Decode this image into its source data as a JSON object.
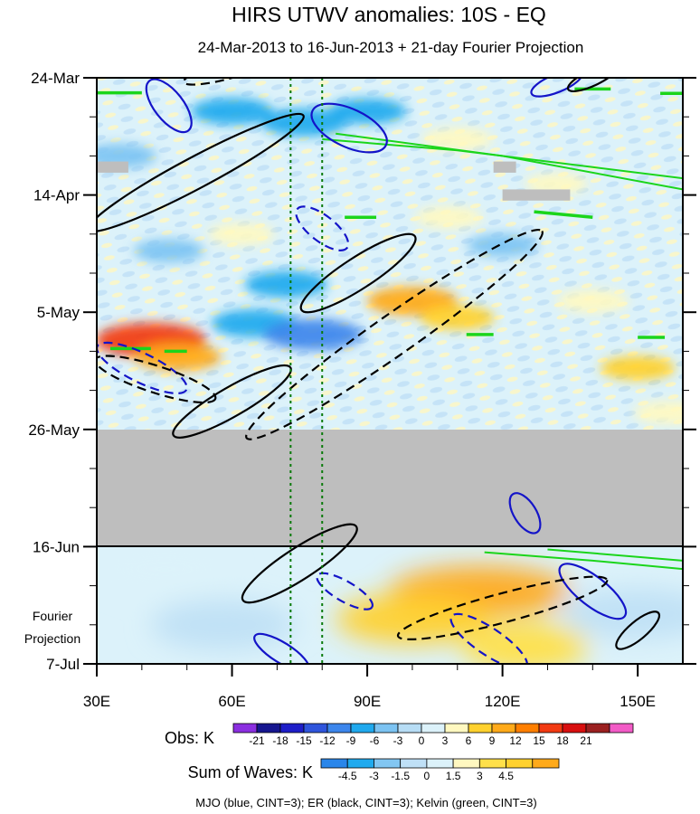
{
  "chart_data": {
    "type": "heatmap",
    "title": "HIRS UTWV anomalies: 10S - EQ",
    "subtitle": "24-Mar-2013 to 16-Jun-2013 + 21-day Fourier Projection",
    "xlabel": "",
    "ylabel": "",
    "x_range": [
      30,
      160
    ],
    "x_ticks": [
      30,
      60,
      90,
      120,
      150
    ],
    "x_tick_labels": [
      "30E",
      "60E",
      "90E",
      "120E",
      "150E"
    ],
    "y_ticks": [
      "24-Mar",
      "14-Apr",
      "5-May",
      "26-May",
      "16-Jun",
      "7-Jul"
    ],
    "y_tick_days": [
      0,
      21,
      42,
      63,
      84,
      105
    ],
    "observation_end": "16-Jun",
    "missing_data_period": [
      "26-May",
      "16-Jun"
    ],
    "projection_label_line1": "Fourier",
    "projection_label_line2": "Projection",
    "reference_lines_lon": [
      73,
      80
    ],
    "obs_colorbar": {
      "label": "Obs: K",
      "ticks": [
        "-21",
        "-18",
        "-15",
        "-12",
        "-9",
        "-6",
        "-3",
        "0",
        "3",
        "6",
        "9",
        "12",
        "15",
        "18",
        "21"
      ],
      "colors": [
        "#8b2fe0",
        "#16168f",
        "#1e1ec8",
        "#2f55dc",
        "#3c86ec",
        "#20a9ee",
        "#7cc3f2",
        "#b7ddf5",
        "#dcf2fa",
        "#fff8c0",
        "#ffd12e",
        "#ffaa1a",
        "#ff7f00",
        "#f23a12",
        "#d80f0f",
        "#9b2020",
        "#f25bc6"
      ]
    },
    "waves_colorbar": {
      "label": "Sum of Waves: K",
      "ticks": [
        "-4.5",
        "-3",
        "-1.5",
        "0",
        "1.5",
        "3",
        "4.5"
      ],
      "colors": [
        "#2a86ea",
        "#20aaee",
        "#82c6f2",
        "#bfe0f6",
        "#dcf2fa",
        "#fff8c0",
        "#ffe04a",
        "#ffd12e",
        "#ffaa1a"
      ]
    },
    "wave_legend": "MJO (blue, CINT=3); ER (black, CINT=3); Kelvin (green, CINT=3)",
    "wave_colors": {
      "mjo": "#1414c8",
      "er": "#000000",
      "kelvin": "#1bd51b"
    },
    "anomaly_features": [
      {
        "lon": 42,
        "day": 47,
        "value": 15
      },
      {
        "lon": 48,
        "day": 50,
        "value": 9
      },
      {
        "lon": 100,
        "day": 40,
        "value": 10
      },
      {
        "lon": 110,
        "day": 43,
        "value": 6
      },
      {
        "lon": 65,
        "day": 44,
        "value": -9
      },
      {
        "lon": 78,
        "day": 46,
        "value": -12
      },
      {
        "lon": 72,
        "day": 37,
        "value": -8
      },
      {
        "lon": 60,
        "day": 6,
        "value": -8
      },
      {
        "lon": 76,
        "day": 8,
        "value": -9
      },
      {
        "lon": 90,
        "day": 6,
        "value": -7
      },
      {
        "lon": 110,
        "day": 11,
        "value": 5
      },
      {
        "lon": 62,
        "day": 28,
        "value": 4
      },
      {
        "lon": 108,
        "day": 25,
        "value": 4
      },
      {
        "lon": 132,
        "day": 19,
        "value": 3
      },
      {
        "lon": 140,
        "day": 40,
        "value": 5
      },
      {
        "lon": 150,
        "day": 52,
        "value": 6
      },
      {
        "lon": 157,
        "day": 60,
        "value": 5
      },
      {
        "lon": 120,
        "day": 30,
        "value": -5
      },
      {
        "lon": 35,
        "day": 14,
        "value": -6
      },
      {
        "lon": 46,
        "day": 31,
        "value": -5
      }
    ],
    "projection_features": [
      {
        "lon": 115,
        "day": 92,
        "value": 4.5
      },
      {
        "lon": 100,
        "day": 97,
        "value": 3
      },
      {
        "lon": 58,
        "day": 98,
        "value": -2.5
      },
      {
        "lon": 45,
        "day": 88,
        "value": -1.5
      },
      {
        "lon": 150,
        "day": 96,
        "value": -3
      },
      {
        "lon": 125,
        "day": 102,
        "value": 1.5
      }
    ],
    "gray_missing_boxes": [
      {
        "lon0": 30,
        "lon1": 37,
        "day0": 15,
        "day1": 17
      },
      {
        "lon0": 120,
        "lon1": 135,
        "day0": 20,
        "day1": 22
      },
      {
        "lon0": 118,
        "lon1": 123,
        "day0": 15,
        "day1": 17
      }
    ],
    "mjo_contours": [
      {
        "lon": 46,
        "day": 5,
        "a": 7,
        "b": 2.6,
        "ang": 52,
        "dashed": false
      },
      {
        "lon": 86,
        "day": 9,
        "a": 9,
        "b": 3.4,
        "ang": 25,
        "dashed": false
      },
      {
        "lon": 132,
        "day": 1,
        "a": 6,
        "b": 1.6,
        "ang": -22,
        "dashed": false
      },
      {
        "lon": 80,
        "day": 27,
        "a": 7,
        "b": 2.3,
        "ang": 38,
        "dashed": true
      },
      {
        "lon": 40,
        "day": 52,
        "a": 11,
        "b": 2.6,
        "ang": 26,
        "dashed": true
      },
      {
        "lon": 125,
        "day": 78,
        "a": 5,
        "b": 2.0,
        "ang": 58,
        "dashed": false
      },
      {
        "lon": 117,
        "day": 101,
        "a": 10,
        "b": 2.4,
        "ang": 34,
        "dashed": true
      },
      {
        "lon": 85,
        "day": 92,
        "a": 7,
        "b": 1.8,
        "ang": 30,
        "dashed": true
      },
      {
        "lon": 140,
        "day": 92,
        "a": 9,
        "b": 2.6,
        "ang": 38,
        "dashed": false
      },
      {
        "lon": 71,
        "day": 103,
        "a": 7,
        "b": 1.8,
        "ang": 32,
        "dashed": false
      }
    ],
    "er_contours": [
      {
        "lon": 52,
        "day": 17,
        "a": 27,
        "b": 2.8,
        "ang": -28,
        "dashed": false
      },
      {
        "lon": 88,
        "day": 35,
        "a": 15,
        "b": 2.8,
        "ang": -33,
        "dashed": false
      },
      {
        "lon": 96,
        "day": 46,
        "a": 40,
        "b": 3.6,
        "ang": -35,
        "dashed": true
      },
      {
        "lon": 43,
        "day": 54,
        "a": 14,
        "b": 2.4,
        "ang": 18,
        "dashed": true
      },
      {
        "lon": 60,
        "day": 58,
        "a": 15,
        "b": 2.6,
        "ang": -30,
        "dashed": false
      },
      {
        "lon": 120,
        "day": 95,
        "a": 24,
        "b": 2.6,
        "ang": -15,
        "dashed": true
      },
      {
        "lon": 75,
        "day": 87,
        "a": 15,
        "b": 2.8,
        "ang": -33,
        "dashed": false
      },
      {
        "lon": 58,
        "day": -1,
        "a": 9,
        "b": 1.4,
        "ang": -14,
        "dashed": true
      },
      {
        "lon": 150,
        "day": 99,
        "a": 6,
        "b": 1.6,
        "ang": -40,
        "dashed": false
      },
      {
        "lon": 140,
        "day": 0,
        "a": 6,
        "b": 1.4,
        "ang": -25,
        "dashed": false
      }
    ],
    "kelvin_lines": [
      [
        [
          80,
          11
        ],
        [
          110,
          13
        ],
        [
          140,
          16
        ],
        [
          160,
          18
        ]
      ],
      [
        [
          83,
          10
        ],
        [
          120,
          14
        ],
        [
          160,
          20
        ]
      ],
      [
        [
          116,
          85
        ],
        [
          140,
          86.5
        ],
        [
          160,
          88
        ]
      ],
      [
        [
          130,
          84.5
        ],
        [
          160,
          86.5
        ]
      ]
    ],
    "kelvin_dashes": [
      [
        [
          30,
          2.7
        ],
        [
          40,
          2.7
        ]
      ],
      [
        [
          136,
          2
        ],
        [
          144,
          2
        ]
      ],
      [
        [
          155,
          2.8
        ],
        [
          160,
          2.8
        ]
      ],
      [
        [
          127,
          24
        ],
        [
          140,
          25
        ]
      ],
      [
        [
          85,
          25
        ],
        [
          92,
          25
        ]
      ],
      [
        [
          45,
          49
        ],
        [
          50,
          49
        ]
      ],
      [
        [
          112,
          46
        ],
        [
          118,
          46
        ]
      ],
      [
        [
          33,
          48.5
        ],
        [
          42,
          48.5
        ]
      ],
      [
        [
          150,
          46.5
        ],
        [
          156,
          46.5
        ]
      ]
    ]
  }
}
